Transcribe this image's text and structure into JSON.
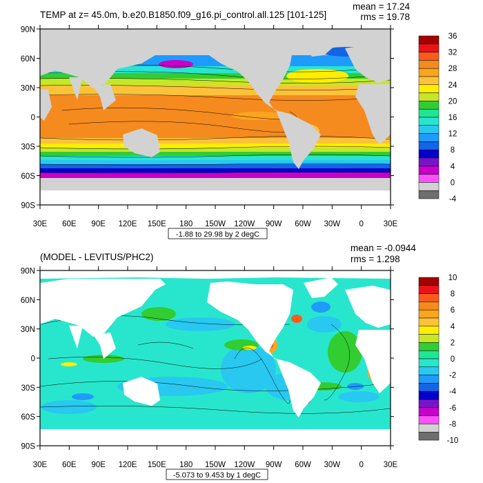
{
  "panels": [
    {
      "title": "TEMP at z=  45.0m, b.e20.B1850.f09_g16.pi_control.all.125 [101-125]",
      "mean_text": "mean = 17.24",
      "rms_text": "rms = 19.78",
      "subtitle": "-1.88 to 29.98 by 2 degC",
      "colorbar_labels": [
        "36",
        "32",
        "28",
        "24",
        "20",
        "16",
        "12",
        "8",
        "4",
        "0",
        "-4"
      ]
    },
    {
      "title": "(MODEL - LEVITUS/PHC2)",
      "mean_text": "mean = -0.0944",
      "rms_text": "rms = 1.298",
      "subtitle": "-5.073 to 9.453 by 1 degC",
      "colorbar_labels": [
        "10",
        "8",
        "6",
        "4",
        "2",
        "0",
        "-2",
        "-4",
        "-6",
        "-8",
        "-10"
      ]
    }
  ],
  "lat_labels": [
    "90N",
    "60N",
    "30N",
    "0",
    "30S",
    "60S",
    "90S"
  ],
  "lon_labels": [
    "30E",
    "60E",
    "90E",
    "120E",
    "150E",
    "180",
    "150W",
    "120W",
    "90W",
    "60W",
    "30W",
    "0",
    "30E"
  ],
  "colors": {
    "land_missing": "#d2d2d2",
    "colorbar_top": [
      "#a50000",
      "#e8141a",
      "#ff5a1e",
      "#f58a1e",
      "#fba51e",
      "#fcc23a",
      "#ffee00",
      "#c8e628",
      "#32cd32",
      "#1ee696",
      "#28e6cd",
      "#28c8f0",
      "#1e9bff",
      "#1464e6",
      "#0000cd",
      "#7814c8",
      "#c800c8",
      "#ff50ff",
      "#d2d2d2",
      "#6e6e6e"
    ],
    "colorbar_bottom": [
      "#a50000",
      "#e8141a",
      "#ff5a1e",
      "#f58a1e",
      "#fba51e",
      "#fcc23a",
      "#ffee00",
      "#c8e628",
      "#32cd32",
      "#1ee696",
      "#28e6cd",
      "#28c8f0",
      "#1e9bff",
      "#1464e6",
      "#0000cd",
      "#7814c8",
      "#c800c8",
      "#ff50ff",
      "#d2d2d2",
      "#6e6e6e"
    ],
    "diff_background": "#28e6cd"
  }
}
